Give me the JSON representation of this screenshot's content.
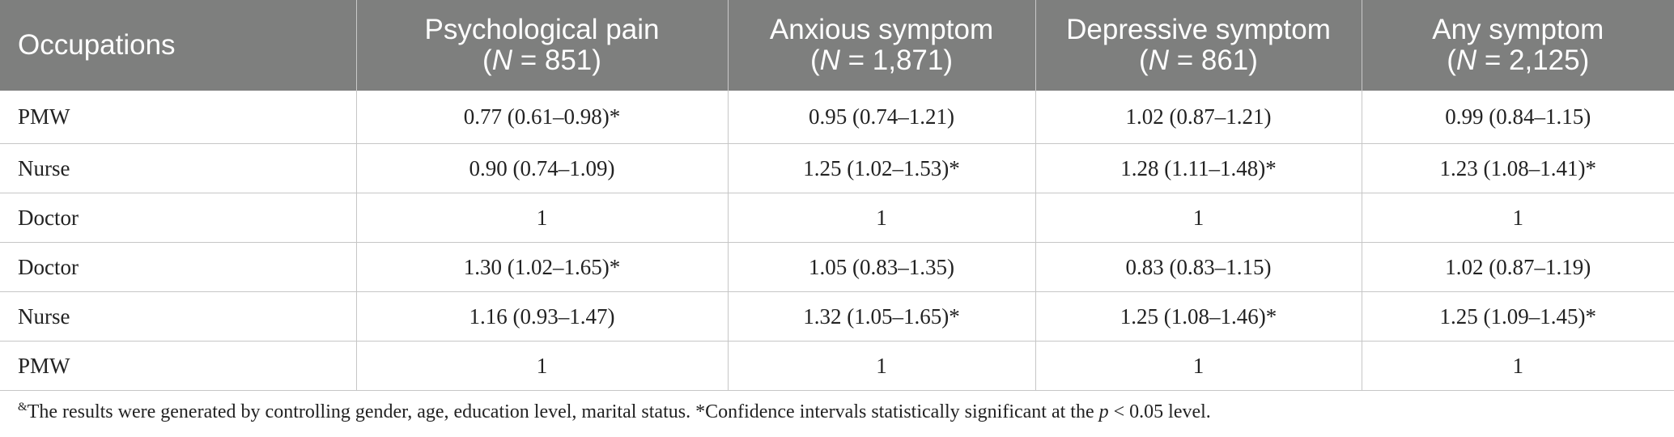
{
  "table": {
    "columns": [
      {
        "title": "Occupations",
        "n_prefix": "",
        "n_value": ""
      },
      {
        "title": "Psychological pain",
        "n_prefix": "N",
        "n_value": " = 851)"
      },
      {
        "title": "Anxious symptom",
        "n_prefix": "N",
        "n_value": " = 1,871)"
      },
      {
        "title": "Depressive symptom",
        "n_prefix": "N",
        "n_value": " = 861)"
      },
      {
        "title": "Any symptom",
        "n_prefix": "N",
        "n_value": " = 2,125)"
      }
    ],
    "rows": [
      [
        "PMW",
        "0.77 (0.61–0.98)*",
        "0.95 (0.74–1.21)",
        "1.02 (0.87–1.21)",
        "0.99 (0.84–1.15)"
      ],
      [
        "Nurse",
        "0.90 (0.74–1.09)",
        "1.25 (1.02–1.53)*",
        "1.28 (1.11–1.48)*",
        "1.23 (1.08–1.41)*"
      ],
      [
        "Doctor",
        "1",
        "1",
        "1",
        "1"
      ],
      [
        "Doctor",
        "1.30 (1.02–1.65)*",
        "1.05 (0.83–1.35)",
        "0.83 (0.83–1.15)",
        "1.02 (0.87–1.19)"
      ],
      [
        "Nurse",
        "1.16 (0.93–1.47)",
        "1.32 (1.05–1.65)*",
        "1.25 (1.08–1.46)*",
        "1.25 (1.09–1.45)*"
      ],
      [
        "PMW",
        "1",
        "1",
        "1",
        "1"
      ]
    ]
  },
  "footnote": {
    "marker": "&",
    "text_before": "The results were generated by controlling gender, age, education level, marital status. *Confidence intervals statistically significant at the ",
    "variable": "p",
    "text_after": " < 0.05 level."
  }
}
